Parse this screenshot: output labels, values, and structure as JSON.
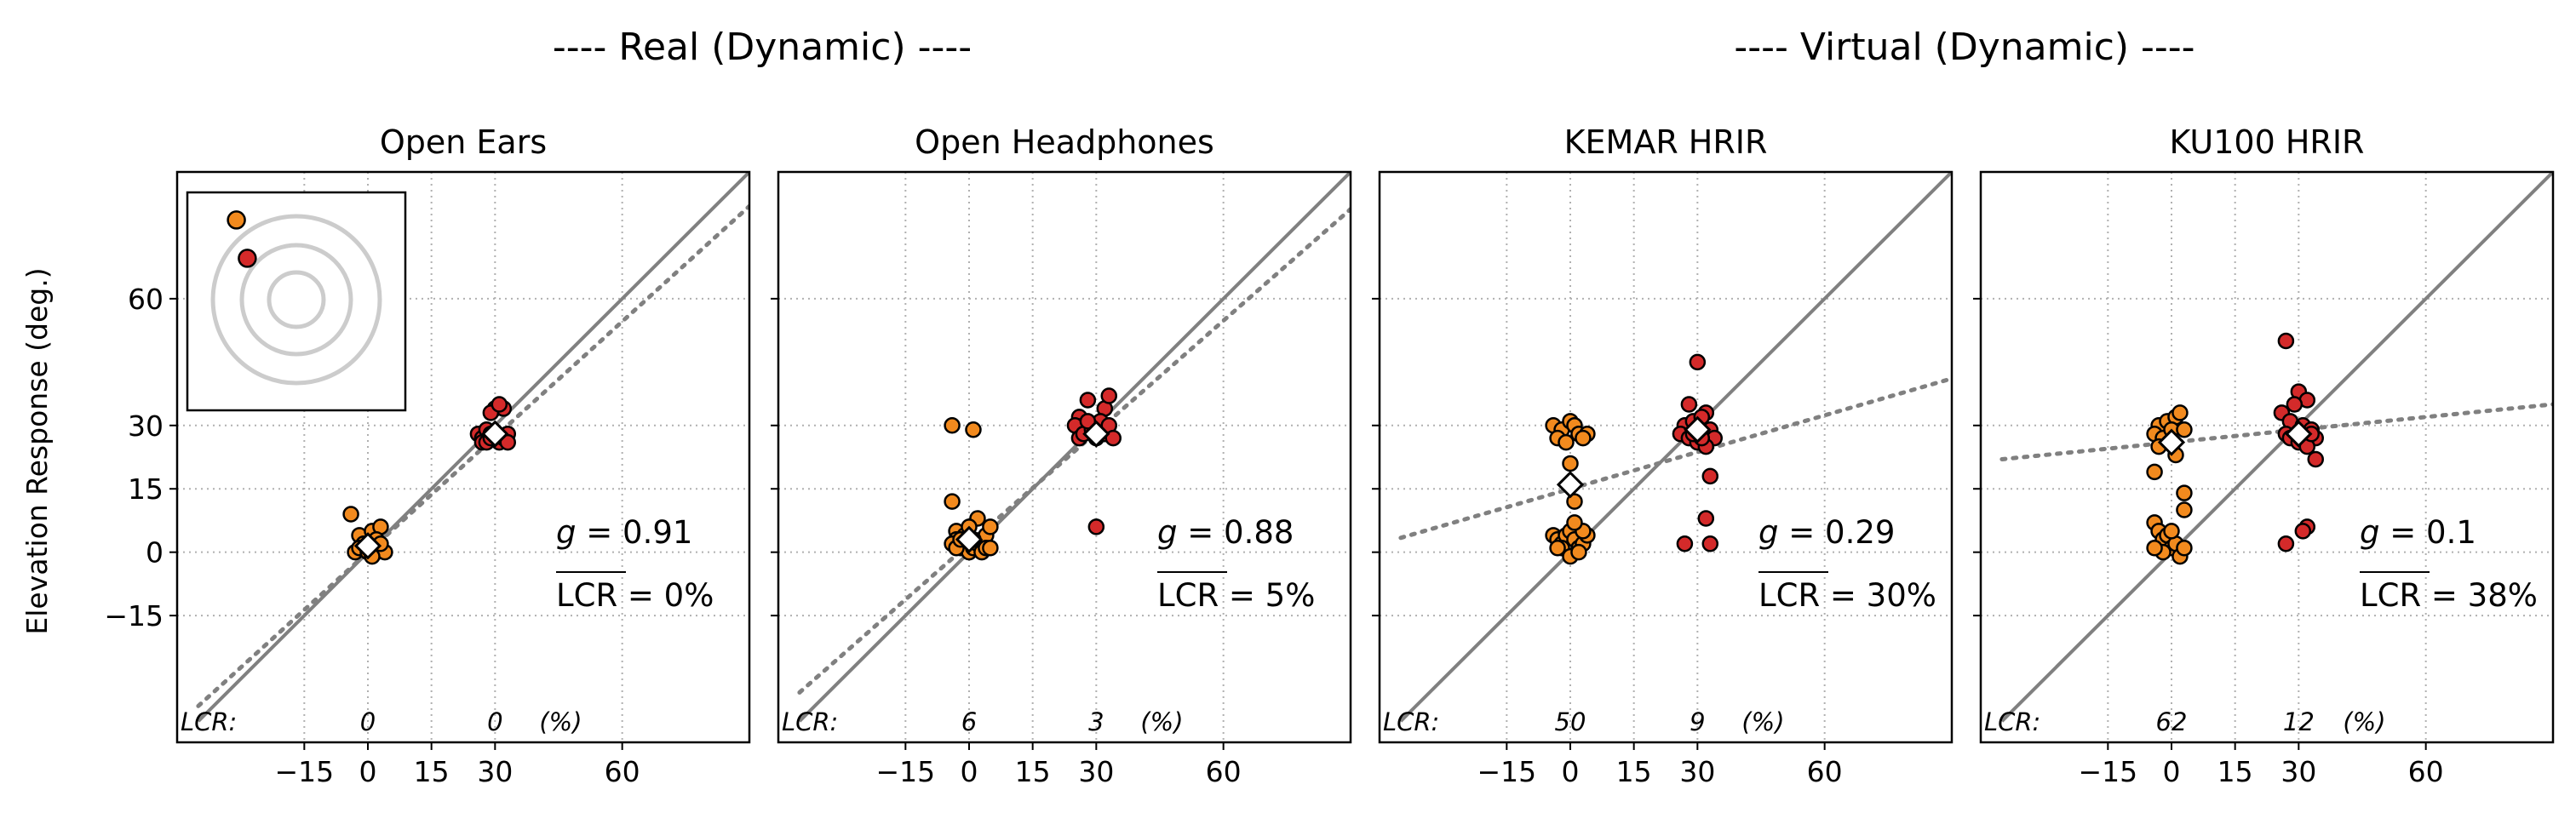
{
  "figure": {
    "supertitles": [
      "---- Real (Dynamic) ----",
      "---- Virtual (Dynamic) ----"
    ],
    "ylabel": "Elevation Response (deg.)",
    "yticks": [
      -15,
      0,
      15,
      30,
      60
    ],
    "xticks": [
      -15,
      0,
      15,
      30,
      60
    ],
    "lcr_label": "LCR:",
    "lcr_unit": "(%)",
    "g_prefix": "g = ",
    "lcr_bar_text": "LCR",
    "lcr_suffix_eq": " = "
  },
  "colors": {
    "targets_0": "#f28a1e",
    "targets_30": "#d42a2a",
    "marker_edge": "#000000",
    "identity_line": "#808080",
    "fit_line": "#808080",
    "grid": "#b0b0b0",
    "inset_rings": "#cccccc"
  },
  "chart_data": [
    {
      "type": "scatter",
      "title": "Open Ears",
      "xlim": [
        -45,
        90
      ],
      "ylim": [
        -45,
        90
      ],
      "g": "0.91",
      "lcr_mean": "0%",
      "lcr": [
        {
          "x": 0,
          "label": "0"
        },
        {
          "x": 30,
          "label": "0"
        }
      ],
      "fit": {
        "slope": 0.91,
        "intercept": 0
      },
      "median_markers": [
        [
          0,
          1.5
        ],
        [
          30,
          28
        ]
      ],
      "inset": {
        "points": [
          [
            -0.55,
            0.52,
            "targets_0"
          ],
          [
            -0.45,
            0.27,
            "targets_30"
          ]
        ]
      },
      "series": [
        {
          "color": "targets_0",
          "points": [
            [
              -4,
              9
            ],
            [
              -2,
              4
            ],
            [
              1,
              5
            ],
            [
              3,
              6
            ],
            [
              -1,
              2
            ],
            [
              2,
              0
            ],
            [
              3,
              1
            ],
            [
              4,
              0
            ],
            [
              -3,
              0
            ],
            [
              0,
              1
            ],
            [
              1,
              2
            ],
            [
              2,
              3
            ],
            [
              -2,
              1
            ],
            [
              3,
              2
            ],
            [
              0,
              0
            ],
            [
              1,
              -1
            ]
          ]
        },
        {
          "color": "targets_30",
          "points": [
            [
              30,
              34
            ],
            [
              32,
              34
            ],
            [
              29,
              33
            ],
            [
              31,
              35
            ],
            [
              26,
              28
            ],
            [
              27,
              27
            ],
            [
              28,
              29
            ],
            [
              29,
              28
            ],
            [
              30,
              27
            ],
            [
              31,
              26
            ],
            [
              32,
              27
            ],
            [
              33,
              28
            ],
            [
              33,
              26
            ],
            [
              27,
              26
            ],
            [
              28,
              26
            ],
            [
              29,
              27
            ]
          ]
        }
      ]
    },
    {
      "type": "scatter",
      "title": "Open Headphones",
      "xlim": [
        -45,
        90
      ],
      "ylim": [
        -45,
        90
      ],
      "g": "0.88",
      "lcr_mean": "5%",
      "lcr": [
        {
          "x": 0,
          "label": "6"
        },
        {
          "x": 30,
          "label": "3"
        }
      ],
      "fit": {
        "slope": 0.88,
        "intercept": 2
      },
      "median_markers": [
        [
          0,
          3
        ],
        [
          30,
          28
        ]
      ],
      "series": [
        {
          "color": "targets_0",
          "points": [
            [
              -4,
              30
            ],
            [
              1,
              29
            ],
            [
              -4,
              12
            ],
            [
              -3,
              5
            ],
            [
              -3,
              3
            ],
            [
              -4,
              2
            ],
            [
              -2,
              1
            ],
            [
              0,
              0
            ],
            [
              1,
              1
            ],
            [
              2,
              2
            ],
            [
              3,
              3
            ],
            [
              4,
              4
            ],
            [
              5,
              6
            ],
            [
              -1,
              4
            ],
            [
              2,
              8
            ],
            [
              3,
              0
            ],
            [
              4,
              1
            ],
            [
              5,
              1
            ],
            [
              -3,
              1
            ],
            [
              1,
              3
            ],
            [
              0,
              6
            ],
            [
              -2,
              3
            ]
          ]
        },
        {
          "color": "targets_30",
          "points": [
            [
              30,
              6
            ],
            [
              26,
              32
            ],
            [
              28,
              36
            ],
            [
              32,
              34
            ],
            [
              33,
              37
            ],
            [
              27,
              30
            ],
            [
              31,
              31
            ],
            [
              25,
              30
            ],
            [
              26,
              27
            ],
            [
              27,
              28
            ],
            [
              29,
              29
            ],
            [
              30,
              27
            ],
            [
              32,
              28
            ],
            [
              33,
              30
            ],
            [
              34,
              27
            ],
            [
              28,
              31
            ]
          ]
        }
      ]
    },
    {
      "type": "scatter",
      "title": "KEMAR HRIR",
      "xlim": [
        -45,
        90
      ],
      "ylim": [
        -45,
        90
      ],
      "g": "0.29",
      "lcr_mean": "30%",
      "lcr": [
        {
          "x": 0,
          "label": "50"
        },
        {
          "x": 30,
          "label": "9"
        }
      ],
      "fit": {
        "slope": 0.29,
        "intercept": 15
      },
      "median_markers": [
        [
          0,
          16
        ],
        [
          30,
          29
        ]
      ],
      "series": [
        {
          "color": "targets_0",
          "points": [
            [
              -4,
              30
            ],
            [
              -2,
              29
            ],
            [
              0,
              31
            ],
            [
              1,
              30
            ],
            [
              2,
              28
            ],
            [
              4,
              28
            ],
            [
              -3,
              27
            ],
            [
              -1,
              26
            ],
            [
              3,
              27
            ],
            [
              0,
              21
            ],
            [
              1,
              12
            ],
            [
              -4,
              4
            ],
            [
              -3,
              3
            ],
            [
              -2,
              2
            ],
            [
              -1,
              4
            ],
            [
              0,
              5
            ],
            [
              1,
              3
            ],
            [
              2,
              1
            ],
            [
              3,
              2
            ],
            [
              4,
              4
            ],
            [
              -2,
              1
            ],
            [
              0,
              -1
            ],
            [
              2,
              0
            ],
            [
              3,
              5
            ],
            [
              -3,
              1
            ],
            [
              1,
              7
            ]
          ]
        },
        {
          "color": "targets_30",
          "points": [
            [
              30,
              45
            ],
            [
              28,
              35
            ],
            [
              32,
              33
            ],
            [
              27,
              30
            ],
            [
              29,
              31
            ],
            [
              31,
              32
            ],
            [
              33,
              29
            ],
            [
              34,
              27
            ],
            [
              26,
              28
            ],
            [
              28,
              27
            ],
            [
              30,
              26
            ],
            [
              32,
              25
            ],
            [
              33,
              18
            ],
            [
              32,
              8
            ],
            [
              33,
              2
            ],
            [
              27,
              2
            ],
            [
              29,
              28
            ],
            [
              31,
              27
            ]
          ]
        }
      ]
    },
    {
      "type": "scatter",
      "title": "KU100 HRIR",
      "xlim": [
        -45,
        90
      ],
      "ylim": [
        -45,
        90
      ],
      "g": "0.1",
      "lcr_mean": "38%",
      "lcr": [
        {
          "x": 0,
          "label": "62"
        },
        {
          "x": 30,
          "label": "12"
        }
      ],
      "fit": {
        "slope": 0.1,
        "intercept": 26
      },
      "median_markers": [
        [
          0,
          26
        ],
        [
          30,
          28
        ]
      ],
      "series": [
        {
          "color": "targets_0",
          "points": [
            [
              -3,
              30
            ],
            [
              -1,
              31
            ],
            [
              1,
              32
            ],
            [
              2,
              33
            ],
            [
              -4,
              28
            ],
            [
              -2,
              27
            ],
            [
              0,
              29
            ],
            [
              3,
              29
            ],
            [
              -3,
              25
            ],
            [
              1,
              23
            ],
            [
              -4,
              19
            ],
            [
              3,
              14
            ],
            [
              3,
              10
            ],
            [
              -4,
              7
            ],
            [
              -3,
              5
            ],
            [
              -2,
              3
            ],
            [
              -1,
              4
            ],
            [
              0,
              1
            ],
            [
              1,
              2
            ],
            [
              2,
              -1
            ],
            [
              3,
              1
            ],
            [
              -2,
              0
            ],
            [
              -4,
              1
            ],
            [
              0,
              5
            ]
          ]
        },
        {
          "color": "targets_30",
          "points": [
            [
              27,
              50
            ],
            [
              30,
              38
            ],
            [
              32,
              36
            ],
            [
              29,
              35
            ],
            [
              26,
              33
            ],
            [
              28,
              31
            ],
            [
              31,
              30
            ],
            [
              33,
              29
            ],
            [
              34,
              27
            ],
            [
              27,
              28
            ],
            [
              28,
              27
            ],
            [
              30,
              26
            ],
            [
              32,
              25
            ],
            [
              34,
              22
            ],
            [
              32,
              6
            ],
            [
              31,
              5
            ],
            [
              27,
              2
            ],
            [
              33,
              28
            ]
          ]
        }
      ]
    }
  ]
}
